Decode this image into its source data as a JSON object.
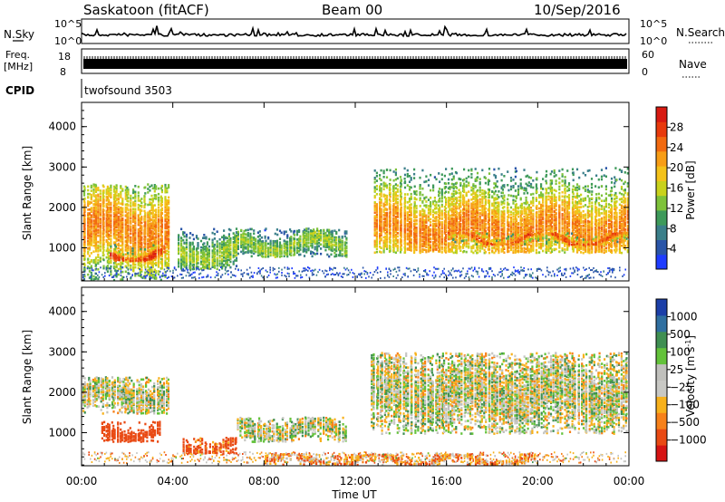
{
  "header": {
    "station": "Saskatoon (fitACF)",
    "beam": "Beam 00",
    "date": "10/Sep/2016"
  },
  "top_panels": {
    "nsky_label": "N.Sky",
    "nsky_ticks": [
      "10^5",
      "10^0"
    ],
    "nsearch_label": "N.Search",
    "nsearch_ticks": [
      "10^5",
      "10^0"
    ],
    "freq_label": "Freq.",
    "freq_unit": "[MHz]",
    "freq_ticks": [
      "18",
      "8"
    ],
    "nave_label": "Nave",
    "nave_ticks": [
      "60",
      "0"
    ],
    "cpid_label": "CPID",
    "cpid_value": "twofsound 3503"
  },
  "chart_data": [
    {
      "type": "heatmap",
      "name": "power",
      "ylabel": "Slant Range [km]",
      "ylim": [
        180,
        4600
      ],
      "yticks": [
        "1000",
        "2000",
        "3000",
        "4000"
      ],
      "xlim": [
        0,
        24
      ],
      "colorbar": {
        "label": "Power [dB]",
        "ticks": [
          "28",
          "24",
          "20",
          "16",
          "12",
          "8",
          "4"
        ],
        "range": [
          0,
          32
        ],
        "colors": [
          "#1f3cff",
          "#2a55a8",
          "#3b7f8a",
          "#3e9a5a",
          "#7ec23a",
          "#c9d21c",
          "#f4c21a",
          "#f79d16",
          "#f26a10",
          "#e83a0d",
          "#d81a12"
        ]
      },
      "bands": [
        {
          "t0": 0.0,
          "t1": 3.8,
          "r0": 200,
          "r1": 2600,
          "center": 1500,
          "peak": 24
        },
        {
          "t0": 1.2,
          "t1": 3.6,
          "r0": 700,
          "r1": 1100,
          "center": 850,
          "peak": 30
        },
        {
          "t0": 4.2,
          "t1": 6.8,
          "r0": 500,
          "r1": 1500,
          "center": 900,
          "peak": 14
        },
        {
          "t0": 6.8,
          "t1": 11.6,
          "r0": 800,
          "r1": 1500,
          "center": 1100,
          "peak": 14
        },
        {
          "t0": 12.8,
          "t1": 24.0,
          "r0": 900,
          "r1": 3000,
          "center": 1500,
          "peak": 24
        },
        {
          "t0": 16.0,
          "t1": 24.0,
          "r0": 1100,
          "r1": 1400,
          "center": 1250,
          "peak": 28
        }
      ]
    },
    {
      "type": "heatmap",
      "name": "velocity",
      "ylabel": "Slant Range [km]",
      "ylim": [
        180,
        4600
      ],
      "yticks": [
        "1000",
        "2000",
        "3000",
        "4000"
      ],
      "xlim": [
        0,
        24
      ],
      "xticks": [
        "00:00",
        "04:00",
        "08:00",
        "12:00",
        "16:00",
        "20:00",
        "00:00"
      ],
      "xlabel": "Time UT",
      "colorbar": {
        "label": "Velocity [m s",
        "label_sup": "-1",
        "label_tail": "]",
        "ticks": [
          "1000",
          "500",
          "100",
          "25",
          "−25",
          "−100",
          "−500",
          "−1000"
        ],
        "colors": [
          "#1c3fa8",
          "#2f6fa0",
          "#3f8f52",
          "#63c23a",
          "#c0c0bc",
          "#c8c8c4",
          "#f7b11c",
          "#f7811a",
          "#e94a14",
          "#d61414"
        ]
      },
      "bands": [
        {
          "t0": 0.0,
          "t1": 3.8,
          "r0": 1500,
          "r1": 2400,
          "vel": 0
        },
        {
          "t0": 0.8,
          "t1": 3.4,
          "r0": 800,
          "r1": 1300,
          "vel": -200
        },
        {
          "t0": 4.4,
          "t1": 6.8,
          "r0": 500,
          "r1": 900,
          "vel": -150
        },
        {
          "t0": 6.8,
          "t1": 11.6,
          "r0": 800,
          "r1": 1400,
          "vel": 0
        },
        {
          "t0": 12.6,
          "t1": 24.0,
          "r0": 1000,
          "r1": 3000,
          "vel": 0
        },
        {
          "t0": 8.0,
          "t1": 20.0,
          "r0": 200,
          "r1": 500,
          "vel": -80
        }
      ]
    }
  ]
}
